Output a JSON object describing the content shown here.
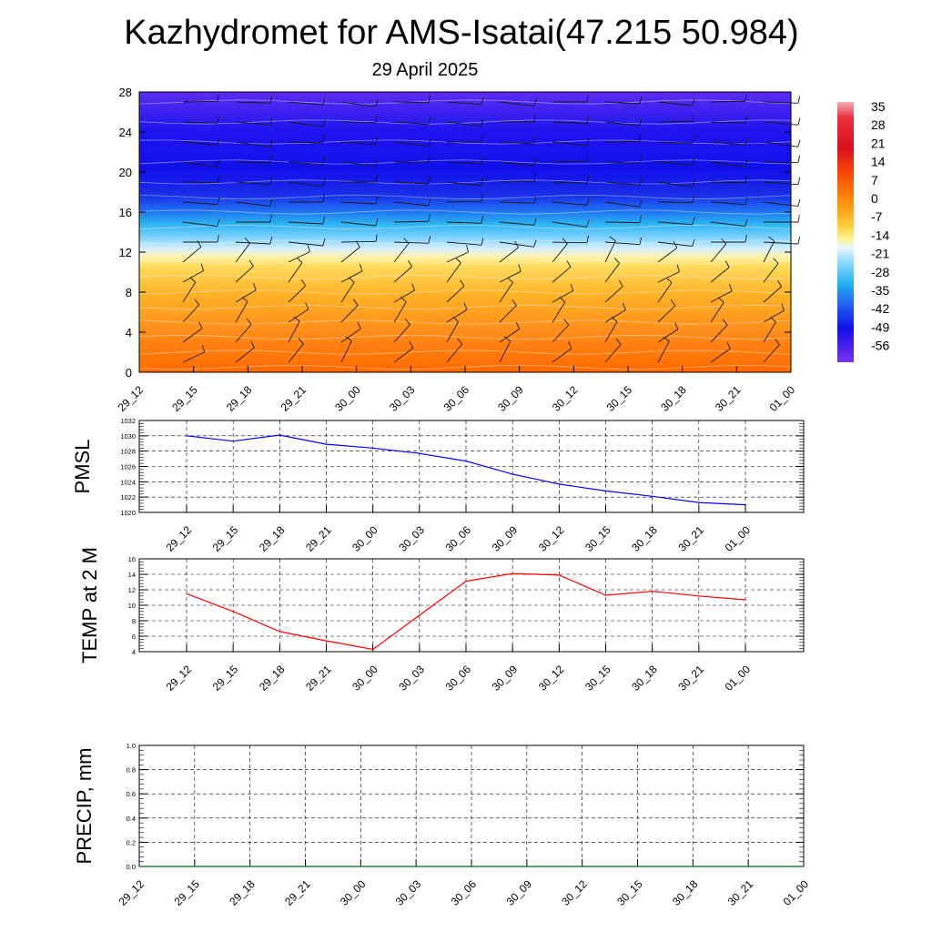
{
  "title": "Kazhydromet for AMS-Isatai(47.215 50.984)",
  "subtitle": "29 April 2025",
  "colors": {
    "pmsl_line": "#0000ff",
    "temp_line": "#ff0000",
    "precip_line": "#006400",
    "grid": "#000000"
  },
  "chart_data": [
    {
      "type": "heatmap",
      "title": "",
      "xlabel": "",
      "ylabel": "",
      "x_ticks": [
        "29_12",
        "29_15",
        "29_18",
        "29_21",
        "30_00",
        "30_03",
        "30_06",
        "30_09",
        "30_12",
        "30_15",
        "30_18",
        "30_21",
        "01_00"
      ],
      "y_ticks": [
        "0",
        "4",
        "8",
        "12",
        "16",
        "20",
        "24",
        "28"
      ],
      "ylim": [
        0,
        28
      ],
      "colorbar_labels": [
        "35",
        "28",
        "21",
        "14",
        "7",
        "0",
        "-7",
        "-14",
        "-21",
        "-28",
        "-35",
        "-42",
        "-49",
        "-56"
      ],
      "colorbar_range": [
        -63,
        35
      ],
      "temperature_profile": [
        {
          "level": 0,
          "value": 14
        },
        {
          "level": 4,
          "value": 10
        },
        {
          "level": 8,
          "value": 2
        },
        {
          "level": 11.5,
          "value": -5
        },
        {
          "level": 12.5,
          "value": -14
        },
        {
          "level": 14,
          "value": -24
        },
        {
          "level": 16,
          "value": -38
        },
        {
          "level": 18,
          "value": -52
        },
        {
          "level": 20,
          "value": -59
        },
        {
          "level": 24,
          "value": -58
        },
        {
          "level": 28,
          "value": -54
        }
      ],
      "wind_barbs": "present"
    },
    {
      "type": "line",
      "ylabel": "PMSL",
      "x_ticks": [
        "29_12",
        "29_15",
        "29_18",
        "29_21",
        "30_00",
        "30_03",
        "30_06",
        "30_09",
        "30_12",
        "30_15",
        "30_18",
        "30_21",
        "01_00"
      ],
      "y_ticks": [
        "1020",
        "1022",
        "1024",
        "1026",
        "1028",
        "1030",
        "1032"
      ],
      "ylim": [
        1020,
        1032
      ],
      "series": [
        {
          "values": [
            1030.0,
            1029.3,
            1030.1,
            1028.9,
            1028.4,
            1027.7,
            1026.7,
            1025.0,
            1023.7,
            1022.8,
            1022.1,
            1021.3,
            1021.0
          ]
        }
      ],
      "grid": true
    },
    {
      "type": "line",
      "ylabel": "TEMP at 2 M",
      "x_ticks": [
        "29_12",
        "29_15",
        "29_18",
        "29_21",
        "30_00",
        "30_03",
        "30_06",
        "30_09",
        "30_12",
        "30_15",
        "30_18",
        "30_21",
        "01_00"
      ],
      "y_ticks": [
        "4",
        "6",
        "8",
        "10",
        "12",
        "14",
        "16"
      ],
      "ylim": [
        4,
        16
      ],
      "series": [
        {
          "values": [
            11.5,
            9.2,
            6.6,
            5.4,
            4.3,
            8.7,
            13.1,
            14.1,
            13.9,
            11.3,
            11.8,
            11.2,
            10.7
          ]
        }
      ],
      "grid": true
    },
    {
      "type": "line",
      "ylabel": "PRECIP, mm",
      "x_ticks": [
        "29_12",
        "29_15",
        "29_18",
        "29_21",
        "30_00",
        "30_03",
        "30_06",
        "30_09",
        "30_12",
        "30_15",
        "30_18",
        "30_21",
        "01_00"
      ],
      "y_ticks": [
        "0.0",
        "0.2",
        "0.4",
        "0.6",
        "0.8",
        "1.0"
      ],
      "ylim": [
        0,
        1
      ],
      "series": [
        {
          "values": [
            0,
            0,
            0,
            0,
            0,
            0,
            0,
            0,
            0,
            0,
            0,
            0,
            0
          ]
        }
      ],
      "grid": true
    }
  ]
}
